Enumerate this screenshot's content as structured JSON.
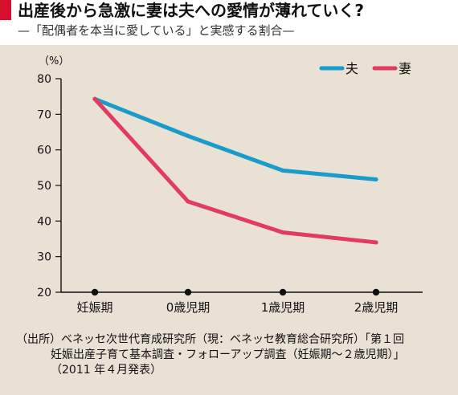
{
  "title": "出産後から急激に妻は夫への愛情が薄れていく?",
  "subtitle": "—「配偶者を本当に愛している」と実感する割合—",
  "colors": {
    "accent": "#d70f2d",
    "background": "#e9e1d4",
    "husband": "#1a9cc9",
    "wife": "#e23b61",
    "axis": "#111111"
  },
  "chart_data": {
    "type": "line",
    "unit_label": "（%）",
    "categories": [
      "妊娠期",
      "0歳児期",
      "1歳児期",
      "2歳児期"
    ],
    "series": [
      {
        "name": "夫",
        "values": [
          74.3,
          63.9,
          54.2,
          51.7
        ],
        "color": "#1a9cc9"
      },
      {
        "name": "妻",
        "values": [
          74.3,
          45.5,
          36.8,
          34.0
        ],
        "color": "#e23b61"
      }
    ],
    "yticks": [
      20,
      30,
      40,
      50,
      60,
      70,
      80
    ],
    "ylim": [
      20,
      80
    ],
    "grid": false,
    "legend_position": "top-right"
  },
  "source": {
    "lines": [
      "（出所）ベネッセ次世代育成研究所（現：ベネッセ教育総合研究所）「第１回",
      "妊娠出産子育て基本調査・フォローアップ調査（妊娠期〜２歳児期）」",
      "（2011 年４月発表）"
    ]
  }
}
